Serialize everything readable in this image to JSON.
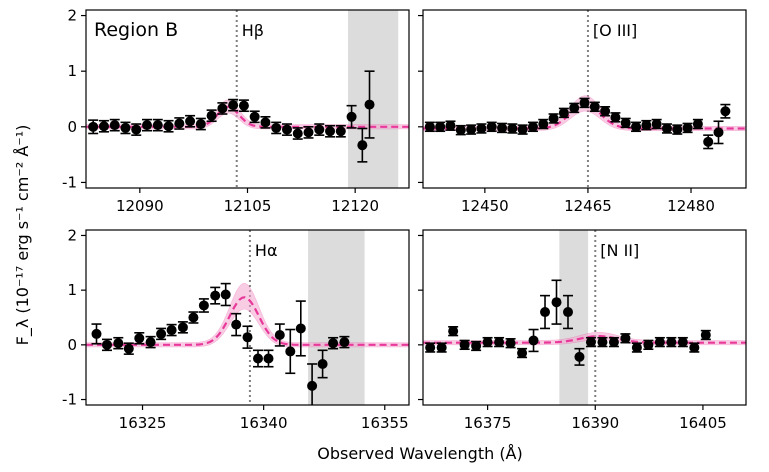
{
  "figure": {
    "ylabel": "F_λ (10⁻¹⁷ erg s⁻¹ cm⁻² Å⁻¹)",
    "ylabel_parts": {
      "sym": "F",
      "sub": "λ",
      "a": " (10",
      "e1": "−17",
      "b": " erg s",
      "e2": "−1",
      "c": " cm",
      "e3": "−2",
      "d": " Å",
      "e4": "−1",
      "e": ")"
    },
    "xlabel": "Observed Wavelength (Å)",
    "colors": {
      "point": "#000000",
      "model": "#e8399a",
      "band": "#f4a6cf",
      "shade": "#d3d3d3",
      "line": "#808080"
    }
  },
  "chart_data": [
    {
      "type": "scatter",
      "panel": "top-left",
      "title": "Region B",
      "line_label": "Hβ",
      "line_center": 12103.5,
      "xlim": [
        12082.5,
        12127.5
      ],
      "ylim": [
        -1.1,
        2.1
      ],
      "xticks": [
        12090,
        12105,
        12120
      ],
      "yticks": [
        -1,
        0,
        1,
        2
      ],
      "shaded": [
        12119,
        12126
      ],
      "x": [
        12083.5,
        12085,
        12086.5,
        12088,
        12089.5,
        12091,
        12092.5,
        12094,
        12095.5,
        12097,
        12098.5,
        12100,
        12101.5,
        12103,
        12104.5,
        12106,
        12107.5,
        12109,
        12110.5,
        12112,
        12113.5,
        12115,
        12116.5,
        12118,
        12119.5,
        12121,
        12122,
        12123
      ],
      "y": [
        0.0,
        0.01,
        0.03,
        -0.02,
        -0.05,
        0.03,
        0.03,
        0.01,
        0.06,
        0.1,
        0.05,
        0.2,
        0.33,
        0.39,
        0.38,
        0.18,
        0.08,
        -0.02,
        -0.05,
        -0.12,
        -0.1,
        -0.05,
        -0.08,
        -0.08,
        0.18,
        -0.33,
        0.4,
        null
      ],
      "yerr": [
        0.12,
        0.1,
        0.1,
        0.1,
        0.1,
        0.1,
        0.1,
        0.1,
        0.1,
        0.1,
        0.1,
        0.1,
        0.1,
        0.1,
        0.1,
        0.1,
        0.1,
        0.1,
        0.1,
        0.1,
        0.1,
        0.1,
        0.1,
        0.1,
        0.2,
        0.3,
        0.6,
        null
      ],
      "model": {
        "amp": 0.36,
        "center": 12102.3,
        "sigma": 1.5,
        "base": 0.0
      }
    },
    {
      "type": "scatter",
      "panel": "top-right",
      "title": "",
      "line_label": "[O III]",
      "line_center": 12465,
      "xlim": [
        12441,
        12488
      ],
      "ylim": [
        -1.1,
        2.1
      ],
      "xticks": [
        12450,
        12465,
        12480
      ],
      "yticks": [
        -1,
        0,
        1,
        2
      ],
      "shaded": null,
      "x": [
        12442,
        12443.5,
        12445,
        12446.5,
        12448,
        12449.5,
        12451,
        12452.5,
        12454,
        12455.5,
        12457,
        12458.5,
        12460,
        12461.5,
        12463,
        12464.5,
        12466,
        12467.5,
        12469,
        12470.5,
        12472,
        12473.5,
        12475,
        12476.5,
        12478,
        12479.5,
        12481,
        12482.5,
        12484,
        12485
      ],
      "y": [
        0.0,
        0.0,
        0.02,
        -0.06,
        -0.05,
        -0.03,
        0.0,
        -0.02,
        -0.03,
        -0.05,
        0.0,
        0.05,
        0.15,
        0.25,
        0.34,
        0.43,
        0.36,
        0.28,
        0.17,
        0.07,
        0.0,
        0.03,
        0.05,
        -0.03,
        -0.05,
        -0.02,
        0.05,
        -0.27,
        -0.1,
        0.28
      ],
      "yerr": [
        0.08,
        0.08,
        0.08,
        0.08,
        0.08,
        0.08,
        0.08,
        0.08,
        0.08,
        0.08,
        0.08,
        0.08,
        0.08,
        0.08,
        0.08,
        0.08,
        0.08,
        0.08,
        0.08,
        0.08,
        0.08,
        0.08,
        0.08,
        0.08,
        0.08,
        0.08,
        0.08,
        0.12,
        0.2,
        0.12
      ],
      "model": {
        "amp": 0.44,
        "center": 12464.6,
        "sigma": 2.2,
        "base": -0.03
      }
    },
    {
      "type": "scatter",
      "panel": "bottom-left",
      "title": "",
      "line_label": "Hα",
      "line_center": 16338.3,
      "xlim": [
        16318,
        16358
      ],
      "ylim": [
        -1.1,
        2.1
      ],
      "xticks": [
        16325,
        16340,
        16355
      ],
      "yticks": [
        -1,
        0,
        1,
        2
      ],
      "shaded": [
        16345.5,
        16352.5
      ],
      "x": [
        16319.3,
        16320.6,
        16322,
        16323.3,
        16324.6,
        16326,
        16327.3,
        16328.6,
        16330,
        16331.3,
        16332.6,
        16334,
        16335.3,
        16336.6,
        16338,
        16339.3,
        16340.6,
        16342,
        16343.3,
        16344.6,
        16346,
        16347.3,
        16348.6,
        16350,
        16351.3,
        16352.6,
        16354,
        16355.3
      ],
      "y": [
        0.2,
        0.0,
        0.03,
        -0.07,
        0.12,
        0.05,
        0.2,
        0.27,
        0.32,
        0.5,
        0.72,
        0.9,
        0.92,
        0.37,
        0.14,
        -0.25,
        -0.25,
        0.18,
        -0.12,
        0.3,
        -0.75,
        -0.35,
        0.03,
        0.05,
        null,
        null,
        null,
        null
      ],
      "yerr": [
        0.18,
        0.1,
        0.1,
        0.1,
        0.1,
        0.1,
        0.1,
        0.1,
        0.1,
        0.1,
        0.12,
        0.15,
        0.2,
        0.2,
        0.2,
        0.15,
        0.15,
        0.2,
        0.4,
        0.5,
        0.4,
        0.25,
        0.1,
        0.1,
        null,
        null,
        null,
        null
      ],
      "model": {
        "amp": 0.87,
        "center": 16337.6,
        "sigma": 1.8,
        "base": 0.0
      }
    },
    {
      "type": "scatter",
      "panel": "bottom-right",
      "title": "",
      "line_label": "[N II]",
      "line_center": 16390,
      "xlim": [
        16366,
        16411
      ],
      "ylim": [
        -1.1,
        2.1
      ],
      "xticks": [
        16375,
        16390,
        16405
      ],
      "yticks": [
        -1,
        0,
        1,
        2
      ],
      "shaded": [
        16385,
        16389
      ],
      "x": [
        16367,
        16368.6,
        16370.2,
        16371.8,
        16373.4,
        16375,
        16376.6,
        16378.2,
        16379.8,
        16381.4,
        16383,
        16384.6,
        16386.2,
        16387.8,
        16389.4,
        16391,
        16392.6,
        16394.2,
        16395.8,
        16397.4,
        16399,
        16400.6,
        16402.2,
        16403.8,
        16405.4,
        16407,
        16408.6
      ],
      "y": [
        -0.05,
        -0.05,
        0.25,
        0.0,
        -0.02,
        0.05,
        0.05,
        0.03,
        -0.15,
        0.08,
        0.6,
        0.78,
        0.6,
        -0.22,
        0.05,
        0.05,
        0.05,
        0.12,
        -0.05,
        0.0,
        0.05,
        0.05,
        0.05,
        -0.05,
        0.18,
        null,
        null
      ],
      "yerr": [
        0.08,
        0.08,
        0.08,
        0.08,
        0.08,
        0.08,
        0.08,
        0.08,
        0.08,
        0.2,
        0.3,
        0.4,
        0.3,
        0.15,
        0.08,
        0.08,
        0.08,
        0.08,
        0.08,
        0.08,
        0.08,
        0.08,
        0.08,
        0.08,
        0.08,
        null,
        null
      ],
      "model": {
        "amp": 0.12,
        "center": 16390.5,
        "sigma": 2.6,
        "base": 0.04
      }
    }
  ]
}
